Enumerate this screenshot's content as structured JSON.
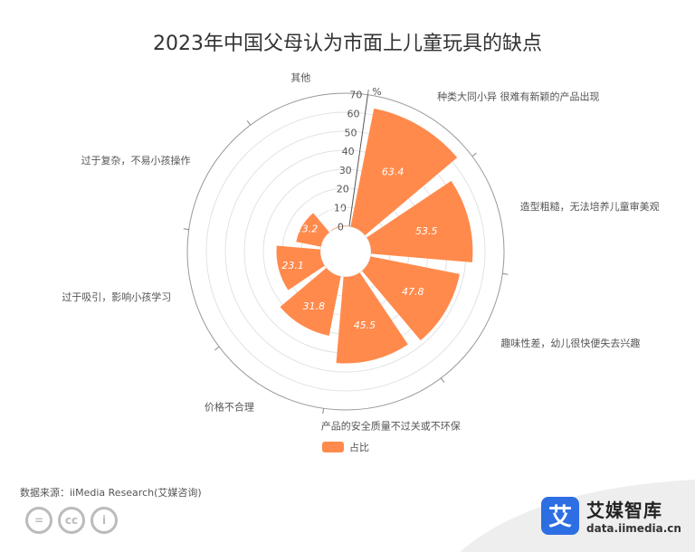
{
  "chart_data": {
    "type": "bar",
    "layout": "polar-radial",
    "title": "2023年中国父母认为市面上儿童玩具的缺点",
    "categories": [
      "种类大同小异 很难有新颖的产品出现",
      "造型粗糙，无法培养儿童审美观",
      "趣味性差，幼儿很快便失去兴趣",
      "产品的安全质量不过关或不环保",
      "价格不合理",
      "过于吸引，影响小孩学习",
      "过于复杂，不易小孩操作",
      "其他"
    ],
    "series": [
      {
        "name": "占比",
        "values": [
          63.4,
          53.5,
          47.8,
          45.5,
          31.8,
          23.1,
          13.2,
          0.3
        ]
      }
    ],
    "radial_axis": {
      "min": 0,
      "max": 70,
      "ticks": [
        0,
        10,
        20,
        30,
        40,
        50,
        60,
        70
      ],
      "unit": "%"
    },
    "grid": true,
    "legend": "bottom-center",
    "colors": {
      "bar": "#ff8a4c",
      "grid": "#e2e2e2",
      "axis": "#555555",
      "label": "#555555",
      "value_label": "#ffffff"
    }
  },
  "source": "数据来源：iiMedia Research(艾媒咨询)",
  "brand": {
    "logo_char": "艾",
    "name": "艾媒智库",
    "url": "data.iimedia.cn"
  },
  "cc_icons": [
    "=",
    "cc",
    "i"
  ]
}
